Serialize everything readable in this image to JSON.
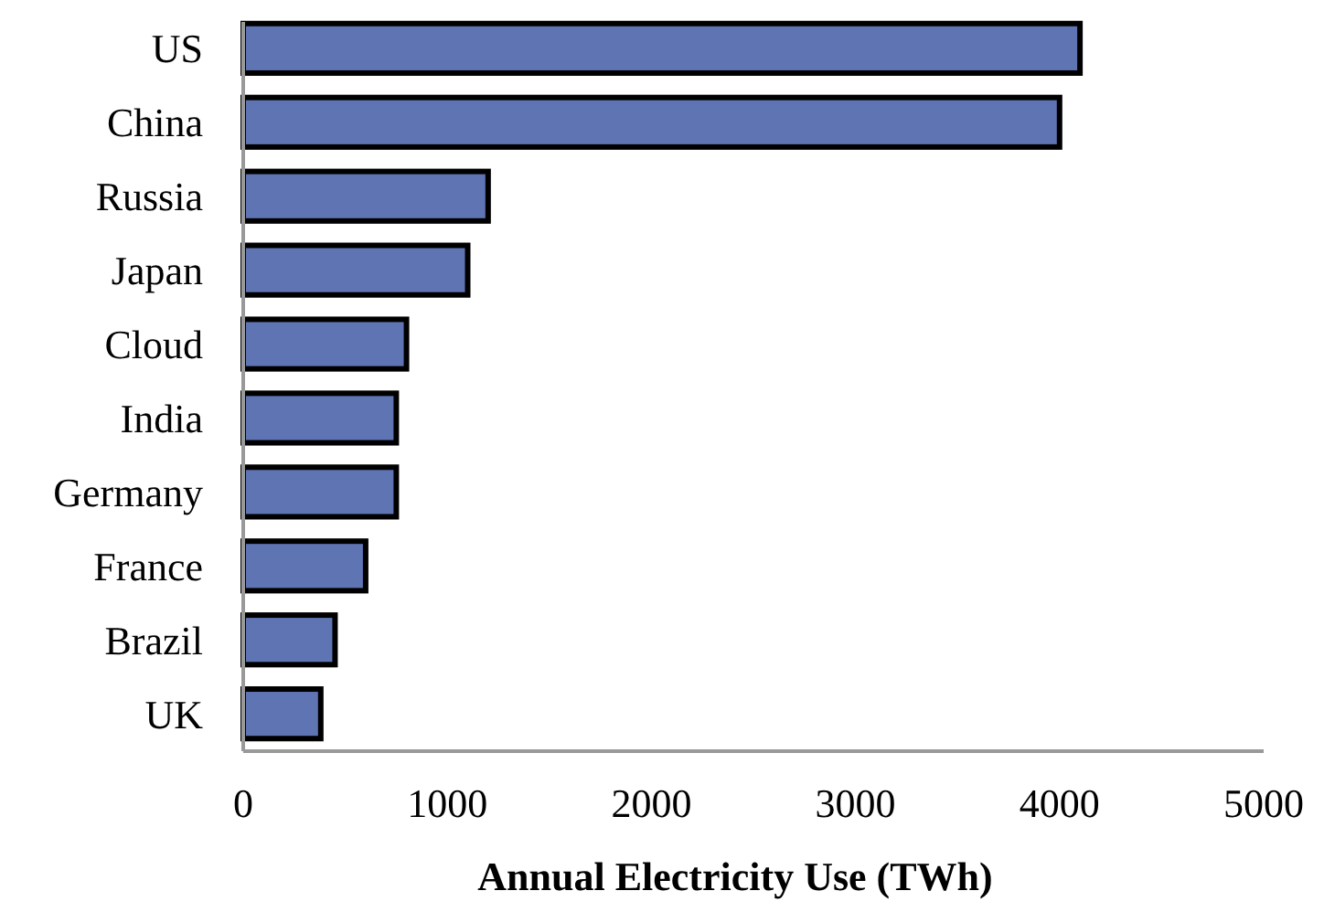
{
  "chart_data": {
    "type": "bar",
    "orientation": "horizontal",
    "xlabel": "Annual Electricity Use (TWh)",
    "categories": [
      "US",
      "China",
      "Russia",
      "Japan",
      "Cloud",
      "India",
      "Germany",
      "France",
      "Brazil",
      "UK"
    ],
    "values": [
      4100,
      4000,
      1200,
      1100,
      800,
      750,
      750,
      600,
      450,
      380
    ],
    "color": "#5f74b3",
    "xlim": [
      0,
      5000
    ],
    "xticks": [
      0,
      1000,
      2000,
      3000,
      4000,
      5000
    ],
    "grid": false
  }
}
